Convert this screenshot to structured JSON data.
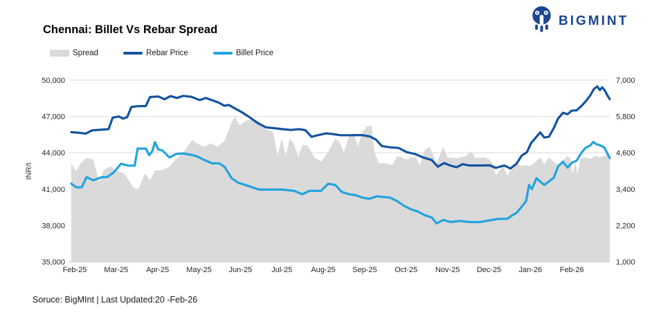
{
  "brand": {
    "logo_text": "BIGMINT",
    "logo_color": "#1B4693"
  },
  "footer": {
    "source_text": "Soruce: BigMInt | Last Updated:20 -Feb-26"
  },
  "chart_data": {
    "type": "combo",
    "title": "Chennai: Billet Vs Rebar Spread",
    "ylabel_left": "INR/t",
    "grid": true,
    "legend_position": "top-left",
    "x_axis": {
      "tick_labels": [
        "Feb-25",
        "Mar-25",
        "Apr-25",
        "May-25",
        "Jun-25",
        "Jul-25",
        "Aug-25",
        "Sep-25",
        "Oct-25",
        "Nov-25",
        "Dec-25",
        "Jan-26",
        "Feb-26"
      ],
      "domain_months": [
        0,
        13
      ]
    },
    "left_axis": {
      "min": 35000,
      "max": 50000,
      "tick_values": [
        35000,
        38000,
        41000,
        44000,
        47000,
        50000
      ],
      "tick_labels": [
        "35,000",
        "38,000",
        "41,000",
        "44,000",
        "47,000",
        "50,000"
      ]
    },
    "right_axis": {
      "min": 1000,
      "max": 7000,
      "tick_values": [
        1000,
        2200,
        3400,
        4600,
        5800,
        7000
      ],
      "tick_labels": [
        "1,000",
        "2,200",
        "3,400",
        "4,600",
        "5,800",
        "7,000"
      ]
    },
    "series": [
      {
        "name": "Spread",
        "type": "area",
        "axis": "right",
        "color": "#DADADA",
        "points": [
          [
            0,
            4250
          ],
          [
            0.12,
            3990
          ],
          [
            0.23,
            4260
          ],
          [
            0.37,
            4430
          ],
          [
            0.53,
            4380
          ],
          [
            0.67,
            3640
          ],
          [
            0.78,
            4030
          ],
          [
            0.95,
            4150
          ],
          [
            1.1,
            4000
          ],
          [
            1.28,
            3920
          ],
          [
            1.5,
            3450
          ],
          [
            1.62,
            3390
          ],
          [
            1.78,
            3920
          ],
          [
            1.9,
            3690
          ],
          [
            2.03,
            4030
          ],
          [
            2.2,
            4030
          ],
          [
            2.37,
            4140
          ],
          [
            2.53,
            4400
          ],
          [
            2.7,
            4600
          ],
          [
            2.92,
            5030
          ],
          [
            3.03,
            4910
          ],
          [
            3.2,
            4800
          ],
          [
            3.37,
            4910
          ],
          [
            3.53,
            4800
          ],
          [
            3.7,
            5000
          ],
          [
            3.78,
            5300
          ],
          [
            3.87,
            5600
          ],
          [
            3.95,
            5800
          ],
          [
            4.07,
            5500
          ],
          [
            4.2,
            5650
          ],
          [
            4.37,
            5720
          ],
          [
            4.53,
            5640
          ],
          [
            4.7,
            5370
          ],
          [
            4.87,
            5300
          ],
          [
            4.98,
            4490
          ],
          [
            5.08,
            5070
          ],
          [
            5.18,
            4490
          ],
          [
            5.27,
            5070
          ],
          [
            5.37,
            4910
          ],
          [
            5.48,
            4450
          ],
          [
            5.58,
            4850
          ],
          [
            5.7,
            4850
          ],
          [
            5.87,
            4450
          ],
          [
            6.03,
            4310
          ],
          [
            6.2,
            4610
          ],
          [
            6.37,
            5070
          ],
          [
            6.48,
            4940
          ],
          [
            6.58,
            4610
          ],
          [
            6.7,
            5150
          ],
          [
            6.82,
            5230
          ],
          [
            6.92,
            4800
          ],
          [
            7.03,
            5300
          ],
          [
            7.15,
            5490
          ],
          [
            7.25,
            5490
          ],
          [
            7.32,
            4610
          ],
          [
            7.42,
            4260
          ],
          [
            7.53,
            4260
          ],
          [
            7.65,
            4230
          ],
          [
            7.75,
            4200
          ],
          [
            7.87,
            4490
          ],
          [
            7.98,
            4450
          ],
          [
            8.08,
            4380
          ],
          [
            8.2,
            4450
          ],
          [
            8.32,
            4450
          ],
          [
            8.42,
            4200
          ],
          [
            8.53,
            4690
          ],
          [
            8.65,
            4800
          ],
          [
            8.82,
            4260
          ],
          [
            8.98,
            4800
          ],
          [
            9.08,
            4450
          ],
          [
            9.32,
            4420
          ],
          [
            9.53,
            4490
          ],
          [
            9.65,
            4650
          ],
          [
            9.75,
            4420
          ],
          [
            9.98,
            4450
          ],
          [
            10.08,
            4390
          ],
          [
            10.2,
            4200
          ],
          [
            10.25,
            3850
          ],
          [
            10.42,
            4160
          ],
          [
            10.53,
            3850
          ],
          [
            10.65,
            4130
          ],
          [
            10.75,
            4250
          ],
          [
            10.87,
            4160
          ],
          [
            10.98,
            4200
          ],
          [
            11.08,
            4160
          ],
          [
            11.2,
            4290
          ],
          [
            11.32,
            4450
          ],
          [
            11.42,
            4220
          ],
          [
            11.53,
            4450
          ],
          [
            11.65,
            4300
          ],
          [
            11.75,
            4200
          ],
          [
            11.87,
            4350
          ],
          [
            11.98,
            4500
          ],
          [
            12.05,
            4400
          ],
          [
            12.1,
            3900
          ],
          [
            12.17,
            4300
          ],
          [
            12.22,
            3900
          ],
          [
            12.3,
            4400
          ],
          [
            12.42,
            4450
          ],
          [
            12.53,
            4400
          ],
          [
            12.65,
            4500
          ],
          [
            12.75,
            4450
          ],
          [
            12.87,
            4500
          ],
          [
            13,
            4550
          ]
        ]
      },
      {
        "name": "Rebar Price",
        "type": "line",
        "axis": "left",
        "color": "#1253A0",
        "points": [
          [
            0,
            45700
          ],
          [
            0.2,
            45650
          ],
          [
            0.35,
            45580
          ],
          [
            0.5,
            45850
          ],
          [
            0.7,
            45900
          ],
          [
            0.9,
            45950
          ],
          [
            1,
            46900
          ],
          [
            1.15,
            47000
          ],
          [
            1.25,
            46820
          ],
          [
            1.35,
            46950
          ],
          [
            1.45,
            47780
          ],
          [
            1.6,
            47850
          ],
          [
            1.8,
            47860
          ],
          [
            1.9,
            48600
          ],
          [
            2.1,
            48650
          ],
          [
            2.25,
            48420
          ],
          [
            2.4,
            48680
          ],
          [
            2.55,
            48520
          ],
          [
            2.7,
            48700
          ],
          [
            2.9,
            48620
          ],
          [
            3.1,
            48350
          ],
          [
            3.25,
            48520
          ],
          [
            3.4,
            48340
          ],
          [
            3.55,
            48150
          ],
          [
            3.7,
            47880
          ],
          [
            3.8,
            47950
          ],
          [
            3.95,
            47660
          ],
          [
            4.1,
            47380
          ],
          [
            4.3,
            46950
          ],
          [
            4.5,
            46450
          ],
          [
            4.7,
            46100
          ],
          [
            4.9,
            46030
          ],
          [
            5.1,
            45950
          ],
          [
            5.3,
            45880
          ],
          [
            5.5,
            45950
          ],
          [
            5.65,
            45870
          ],
          [
            5.8,
            45320
          ],
          [
            5.95,
            45450
          ],
          [
            6.15,
            45600
          ],
          [
            6.3,
            45550
          ],
          [
            6.5,
            45450
          ],
          [
            6.75,
            45450
          ],
          [
            7,
            45460
          ],
          [
            7.2,
            45350
          ],
          [
            7.35,
            45100
          ],
          [
            7.5,
            44550
          ],
          [
            7.7,
            44450
          ],
          [
            7.9,
            44400
          ],
          [
            8.1,
            44050
          ],
          [
            8.3,
            43900
          ],
          [
            8.5,
            43600
          ],
          [
            8.7,
            43400
          ],
          [
            8.85,
            42850
          ],
          [
            9,
            43150
          ],
          [
            9.15,
            42950
          ],
          [
            9.3,
            42800
          ],
          [
            9.45,
            43060
          ],
          [
            9.6,
            42950
          ],
          [
            9.85,
            42950
          ],
          [
            10.1,
            42960
          ],
          [
            10.25,
            42750
          ],
          [
            10.45,
            42950
          ],
          [
            10.6,
            42700
          ],
          [
            10.75,
            43100
          ],
          [
            10.87,
            43750
          ],
          [
            11,
            44050
          ],
          [
            11.1,
            44800
          ],
          [
            11.2,
            45200
          ],
          [
            11.32,
            45680
          ],
          [
            11.42,
            45260
          ],
          [
            11.53,
            45320
          ],
          [
            11.65,
            46050
          ],
          [
            11.75,
            46820
          ],
          [
            11.87,
            47300
          ],
          [
            11.98,
            47180
          ],
          [
            12.08,
            47480
          ],
          [
            12.2,
            47500
          ],
          [
            12.32,
            47880
          ],
          [
            12.42,
            48250
          ],
          [
            12.53,
            48750
          ],
          [
            12.62,
            49280
          ],
          [
            12.7,
            49480
          ],
          [
            12.76,
            49180
          ],
          [
            12.82,
            49400
          ],
          [
            12.88,
            49150
          ],
          [
            12.94,
            48750
          ],
          [
            13,
            48420
          ]
        ]
      },
      {
        "name": "Billet Price",
        "type": "line",
        "axis": "left",
        "color": "#22A3DE",
        "points": [
          [
            0,
            41450
          ],
          [
            0.12,
            41150
          ],
          [
            0.25,
            41150
          ],
          [
            0.37,
            41980
          ],
          [
            0.53,
            41730
          ],
          [
            0.73,
            41980
          ],
          [
            0.87,
            42000
          ],
          [
            1.03,
            42390
          ],
          [
            1.2,
            43100
          ],
          [
            1.37,
            42940
          ],
          [
            1.53,
            42940
          ],
          [
            1.6,
            44350
          ],
          [
            1.8,
            44350
          ],
          [
            1.88,
            43800
          ],
          [
            1.95,
            44100
          ],
          [
            2.02,
            44870
          ],
          [
            2.1,
            44280
          ],
          [
            2.2,
            44190
          ],
          [
            2.37,
            43610
          ],
          [
            2.53,
            43900
          ],
          [
            2.7,
            43950
          ],
          [
            2.92,
            43810
          ],
          [
            3.03,
            43710
          ],
          [
            3.2,
            43420
          ],
          [
            3.4,
            43130
          ],
          [
            3.57,
            43130
          ],
          [
            3.7,
            42840
          ],
          [
            3.87,
            41900
          ],
          [
            4.03,
            41520
          ],
          [
            4.2,
            41340
          ],
          [
            4.53,
            40960
          ],
          [
            4.8,
            40960
          ],
          [
            5.1,
            40960
          ],
          [
            5.37,
            40860
          ],
          [
            5.58,
            40580
          ],
          [
            5.75,
            40860
          ],
          [
            6.03,
            40860
          ],
          [
            6.2,
            41440
          ],
          [
            6.37,
            41350
          ],
          [
            6.53,
            40770
          ],
          [
            6.7,
            40580
          ],
          [
            6.87,
            40500
          ],
          [
            7.03,
            40290
          ],
          [
            7.2,
            40200
          ],
          [
            7.37,
            40400
          ],
          [
            7.7,
            40290
          ],
          [
            7.87,
            40000
          ],
          [
            8.03,
            39620
          ],
          [
            8.2,
            39330
          ],
          [
            8.37,
            39140
          ],
          [
            8.53,
            38850
          ],
          [
            8.7,
            38660
          ],
          [
            8.82,
            38160
          ],
          [
            8.98,
            38450
          ],
          [
            9.15,
            38280
          ],
          [
            9.37,
            38370
          ],
          [
            9.6,
            38280
          ],
          [
            9.87,
            38280
          ],
          [
            9.98,
            38350
          ],
          [
            10.15,
            38450
          ],
          [
            10.32,
            38550
          ],
          [
            10.53,
            38550
          ],
          [
            10.65,
            38850
          ],
          [
            10.75,
            39040
          ],
          [
            10.87,
            39530
          ],
          [
            10.98,
            40000
          ],
          [
            11.05,
            41340
          ],
          [
            11.12,
            41000
          ],
          [
            11.23,
            41900
          ],
          [
            11.32,
            41620
          ],
          [
            11.42,
            41340
          ],
          [
            11.53,
            41620
          ],
          [
            11.65,
            41950
          ],
          [
            11.75,
            42870
          ],
          [
            11.87,
            43260
          ],
          [
            11.98,
            42780
          ],
          [
            12.08,
            43160
          ],
          [
            12.2,
            43350
          ],
          [
            12.32,
            44020
          ],
          [
            12.42,
            44430
          ],
          [
            12.53,
            44600
          ],
          [
            12.6,
            44890
          ],
          [
            12.68,
            44700
          ],
          [
            12.78,
            44600
          ],
          [
            12.87,
            44430
          ],
          [
            12.93,
            44020
          ],
          [
            13,
            43560
          ]
        ]
      }
    ]
  }
}
